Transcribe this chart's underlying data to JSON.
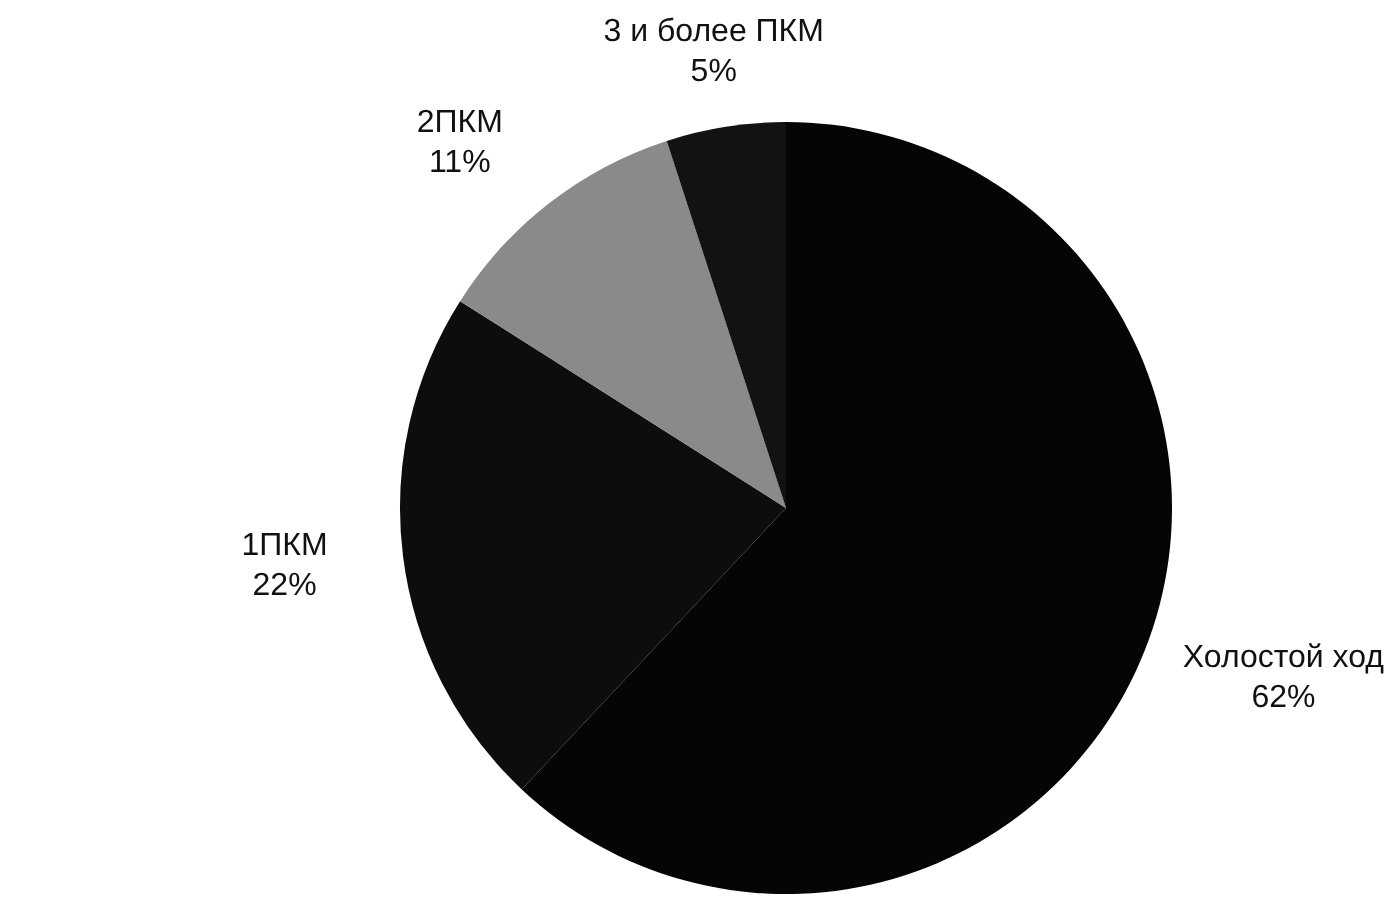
{
  "chart_data": {
    "type": "pie",
    "categories": [
      "Холостой ход",
      "1ПКМ",
      "2ПКМ",
      "3 и более ПКМ"
    ],
    "values": [
      62,
      22,
      11,
      5
    ],
    "value_labels": [
      "62%",
      "22%",
      "11%",
      "5%"
    ],
    "colors": [
      "#050505",
      "#0d0d0d",
      "#8a8a8a",
      "#121212"
    ],
    "data_labels": true,
    "legend": false
  }
}
